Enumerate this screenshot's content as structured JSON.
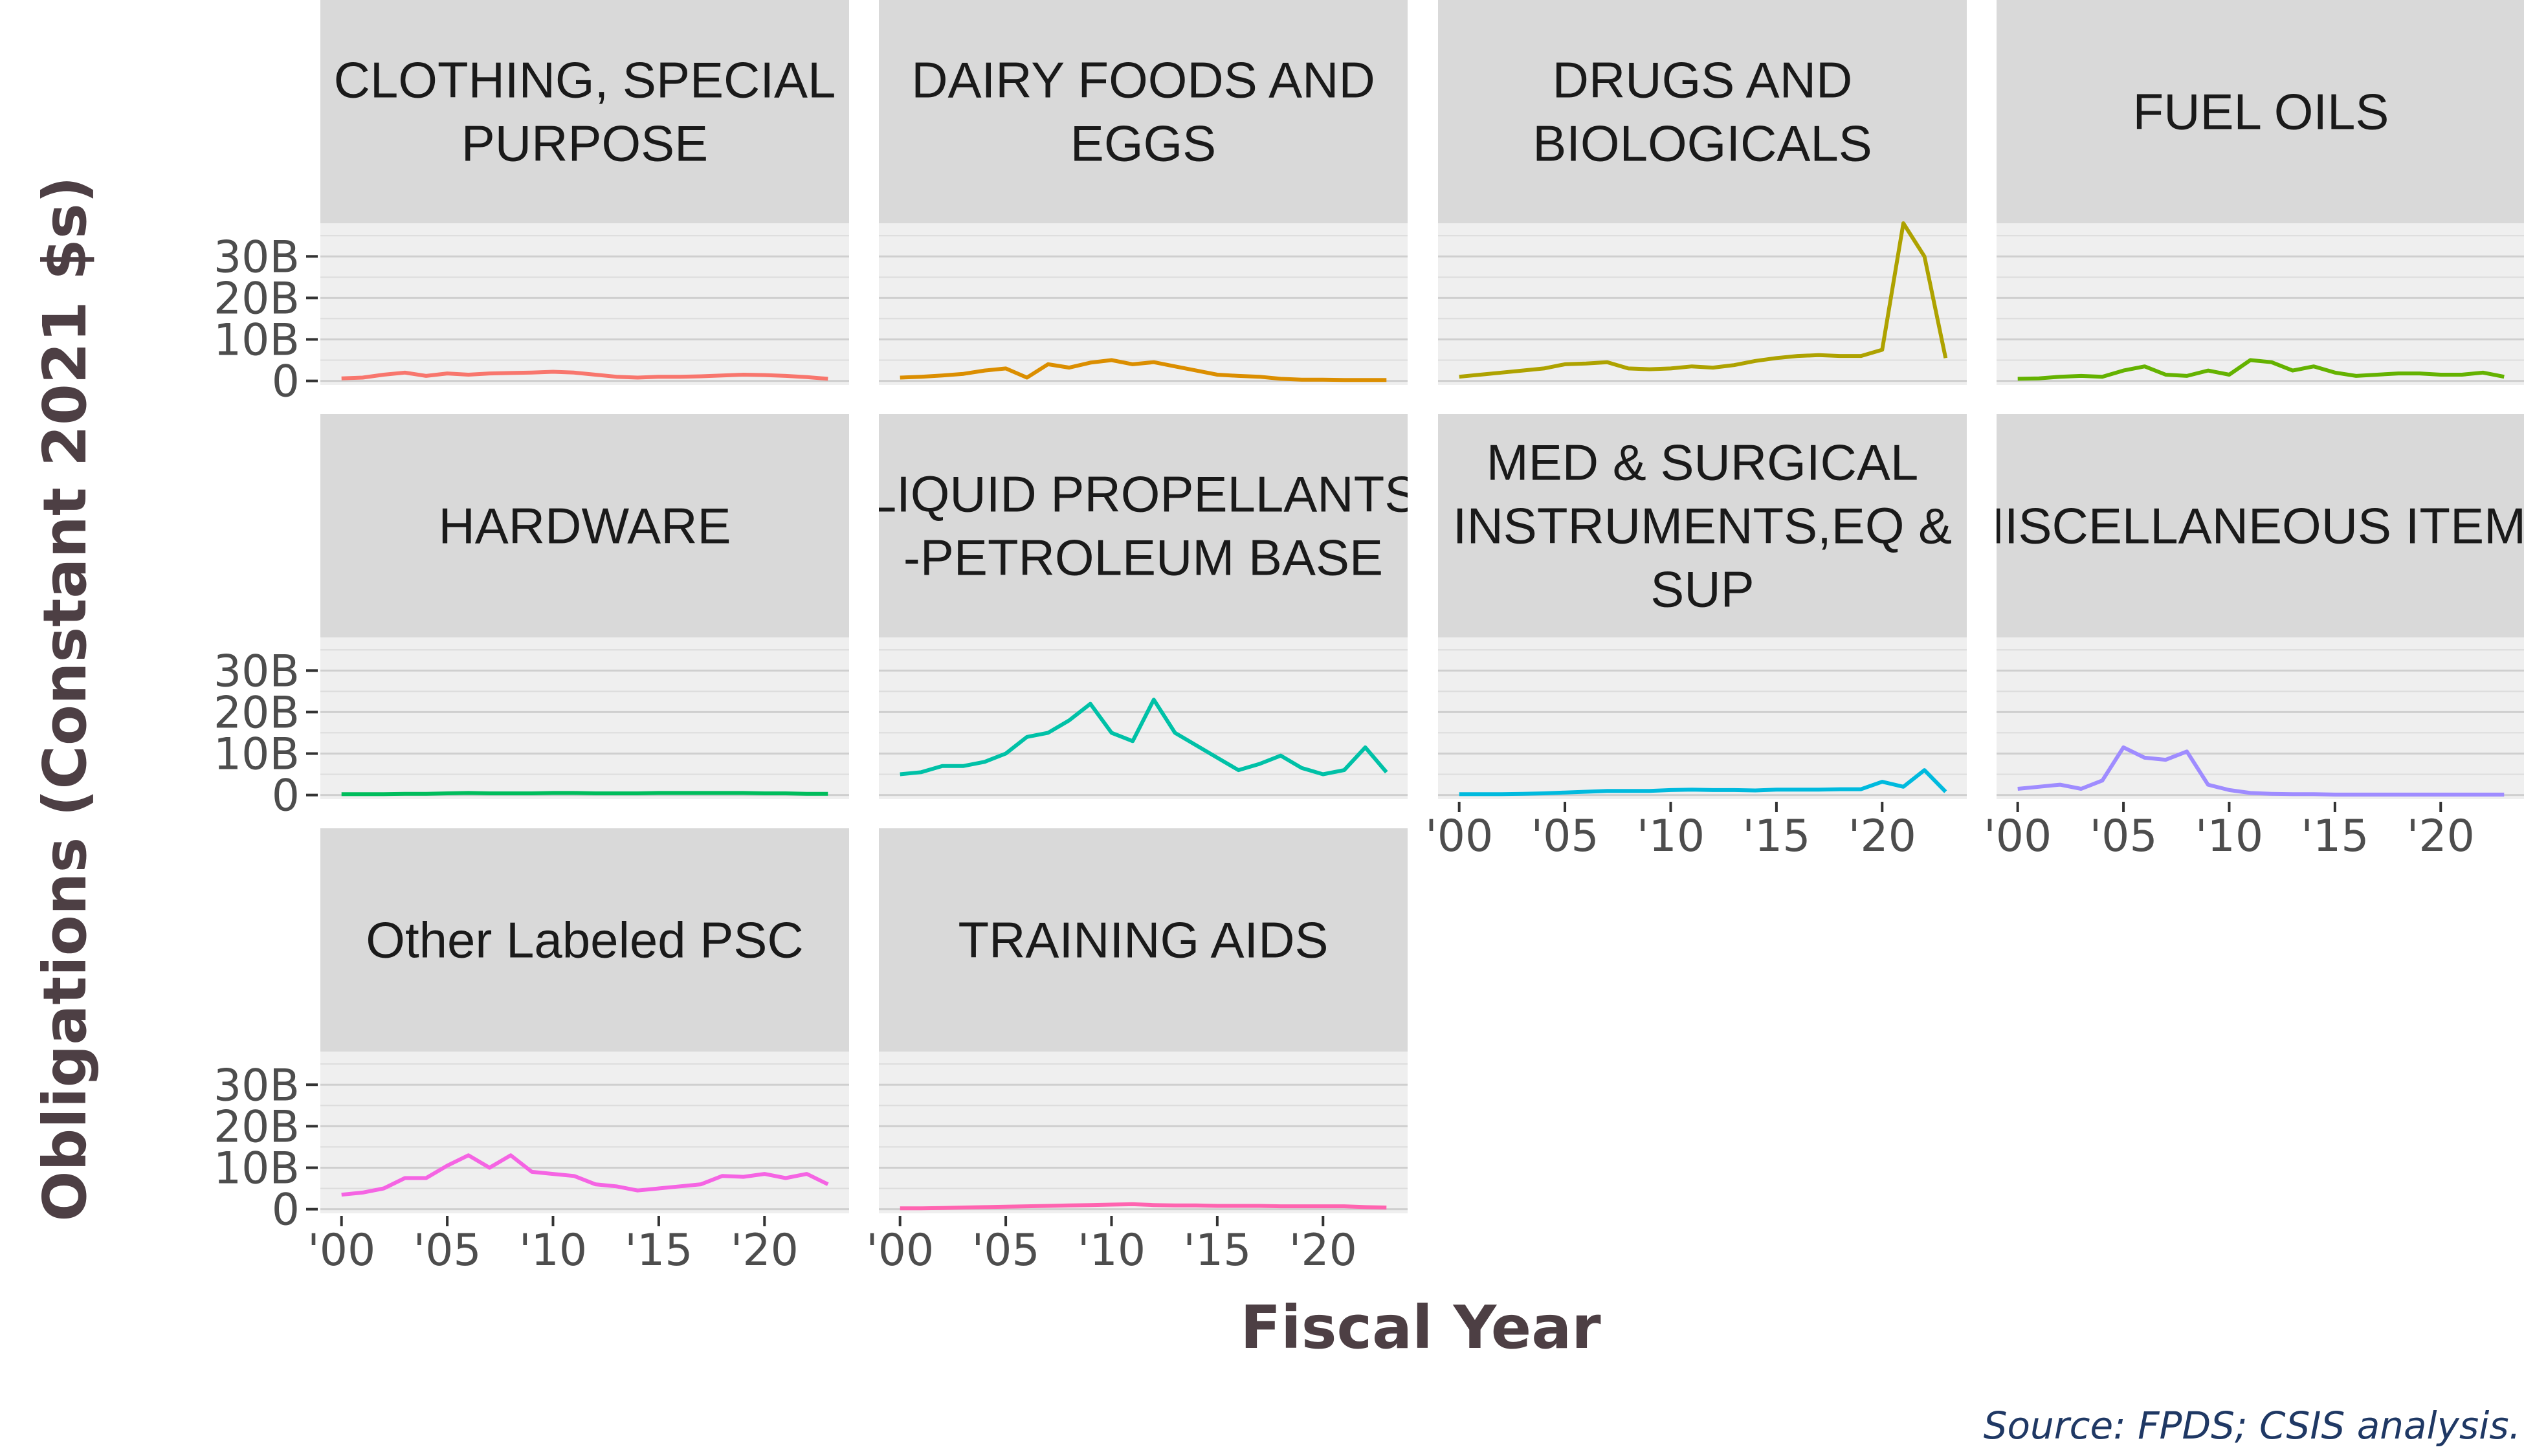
{
  "chart_data": {
    "type": "line",
    "ylabel": "Obligations (Constant 2021 $s)",
    "xlabel": "Fiscal Year",
    "caption": "Source: FPDS; CSIS analysis.",
    "ylim": [
      -1,
      38
    ],
    "xlim": [
      1999,
      2024
    ],
    "y_ticks": [
      0,
      10,
      20,
      30
    ],
    "y_tick_labels": [
      "0",
      "10B",
      "20B",
      "30B"
    ],
    "x_ticks": [
      2000,
      2005,
      2010,
      2015,
      2020
    ],
    "x_tick_labels": [
      "'00",
      "'05",
      "'10",
      "'15",
      "'20"
    ],
    "x": [
      2000,
      2001,
      2002,
      2003,
      2004,
      2005,
      2006,
      2007,
      2008,
      2009,
      2010,
      2011,
      2012,
      2013,
      2014,
      2015,
      2016,
      2017,
      2018,
      2019,
      2020,
      2021,
      2022,
      2023
    ],
    "grid": true,
    "facets": [
      {
        "label": "CLOTHING, SPECIAL PURPOSE",
        "label_lines": [
          "CLOTHING, SPECIAL",
          "PURPOSE"
        ],
        "color": "#F8766D",
        "values": [
          0.6,
          0.8,
          1.5,
          2.0,
          1.2,
          1.8,
          1.5,
          1.8,
          1.9,
          2.0,
          2.2,
          2.0,
          1.5,
          1.0,
          0.8,
          1.0,
          1.0,
          1.1,
          1.3,
          1.5,
          1.4,
          1.2,
          0.9,
          0.5
        ]
      },
      {
        "label": "DAIRY FOODS AND EGGS",
        "label_lines": [
          "DAIRY FOODS AND",
          "EGGS"
        ],
        "color": "#DB8E00",
        "values": [
          0.8,
          1.0,
          1.3,
          1.7,
          2.5,
          3.0,
          0.8,
          4.0,
          3.2,
          4.4,
          5.0,
          4.0,
          4.5,
          3.5,
          2.5,
          1.5,
          1.2,
          1.0,
          0.5,
          0.3,
          0.3,
          0.2,
          0.2,
          0.2
        ]
      },
      {
        "label": "DRUGS AND BIOLOGICALS",
        "label_lines": [
          "DRUGS AND",
          "BIOLOGICALS"
        ],
        "color": "#AEA200",
        "values": [
          1.0,
          1.5,
          2.0,
          2.5,
          3.0,
          4.0,
          4.2,
          4.5,
          3.0,
          2.8,
          3.0,
          3.5,
          3.2,
          3.8,
          4.8,
          5.5,
          6.0,
          6.2,
          6.0,
          6.0,
          7.5,
          38.0,
          30.0,
          5.5
        ]
      },
      {
        "label": "FUEL OILS",
        "label_lines": [
          "FUEL OILS"
        ],
        "color": "#64B200",
        "values": [
          0.5,
          0.6,
          1.0,
          1.2,
          1.0,
          2.5,
          3.5,
          1.5,
          1.2,
          2.5,
          1.5,
          5.0,
          4.5,
          2.5,
          3.5,
          2.0,
          1.2,
          1.5,
          1.8,
          1.8,
          1.5,
          1.5,
          2.0,
          1.0
        ]
      },
      {
        "label": "HARDWARE",
        "label_lines": [
          "HARDWARE"
        ],
        "color": "#00BD5C",
        "values": [
          0.2,
          0.2,
          0.2,
          0.3,
          0.3,
          0.4,
          0.5,
          0.4,
          0.4,
          0.4,
          0.5,
          0.5,
          0.4,
          0.4,
          0.4,
          0.5,
          0.5,
          0.5,
          0.5,
          0.5,
          0.4,
          0.4,
          0.3,
          0.3
        ]
      },
      {
        "label": "LIQUID PROPELLANTS -PETROLEUM BASE",
        "label_lines": [
          "LIQUID PROPELLANTS",
          "-PETROLEUM BASE"
        ],
        "color": "#00C1A7",
        "values": [
          5.0,
          5.5,
          7.0,
          7.0,
          8.0,
          10.0,
          14.0,
          15.0,
          18.0,
          22.0,
          15.0,
          13.0,
          23.0,
          15.0,
          12.0,
          9.0,
          6.0,
          7.5,
          9.5,
          6.5,
          5.0,
          6.0,
          11.5,
          5.5
        ]
      },
      {
        "label": "MED & SURGICAL INSTRUMENTS,EQ & SUP",
        "label_lines": [
          "MED & SURGICAL",
          "INSTRUMENTS,EQ &",
          "SUP"
        ],
        "color": "#00BADE",
        "values": [
          0.2,
          0.2,
          0.2,
          0.3,
          0.4,
          0.6,
          0.8,
          1.0,
          1.0,
          1.0,
          1.2,
          1.3,
          1.2,
          1.2,
          1.1,
          1.3,
          1.3,
          1.3,
          1.4,
          1.4,
          3.2,
          2.0,
          6.0,
          0.8
        ]
      },
      {
        "label": "MISCELLANEOUS ITEMS",
        "label_lines": [
          "MISCELLANEOUS ITEMS"
        ],
        "color": "#9F8CFF",
        "values": [
          1.5,
          2.0,
          2.5,
          1.5,
          3.5,
          11.5,
          9.0,
          8.5,
          10.5,
          2.5,
          1.2,
          0.5,
          0.3,
          0.2,
          0.2,
          0.1,
          0.1,
          0.1,
          0.1,
          0.1,
          0.1,
          0.1,
          0.1,
          0.1
        ]
      },
      {
        "label": "Other Labeled PSC",
        "label_lines": [
          "Other Labeled PSC"
        ],
        "color": "#F564E3",
        "values": [
          3.5,
          4.0,
          5.0,
          7.5,
          7.5,
          10.5,
          13.0,
          10.0,
          13.0,
          9.0,
          8.5,
          8.0,
          6.0,
          5.5,
          4.5,
          5.0,
          5.5,
          6.0,
          8.0,
          7.8,
          8.5,
          7.5,
          8.5,
          6.0
        ]
      },
      {
        "label": "TRAINING AIDS",
        "label_lines": [
          "TRAINING AIDS"
        ],
        "color": "#FF64B0",
        "values": [
          0.2,
          0.2,
          0.3,
          0.4,
          0.5,
          0.6,
          0.7,
          0.8,
          0.9,
          1.0,
          1.1,
          1.2,
          1.0,
          0.9,
          0.9,
          0.8,
          0.8,
          0.8,
          0.7,
          0.7,
          0.7,
          0.7,
          0.5,
          0.4
        ]
      }
    ]
  }
}
